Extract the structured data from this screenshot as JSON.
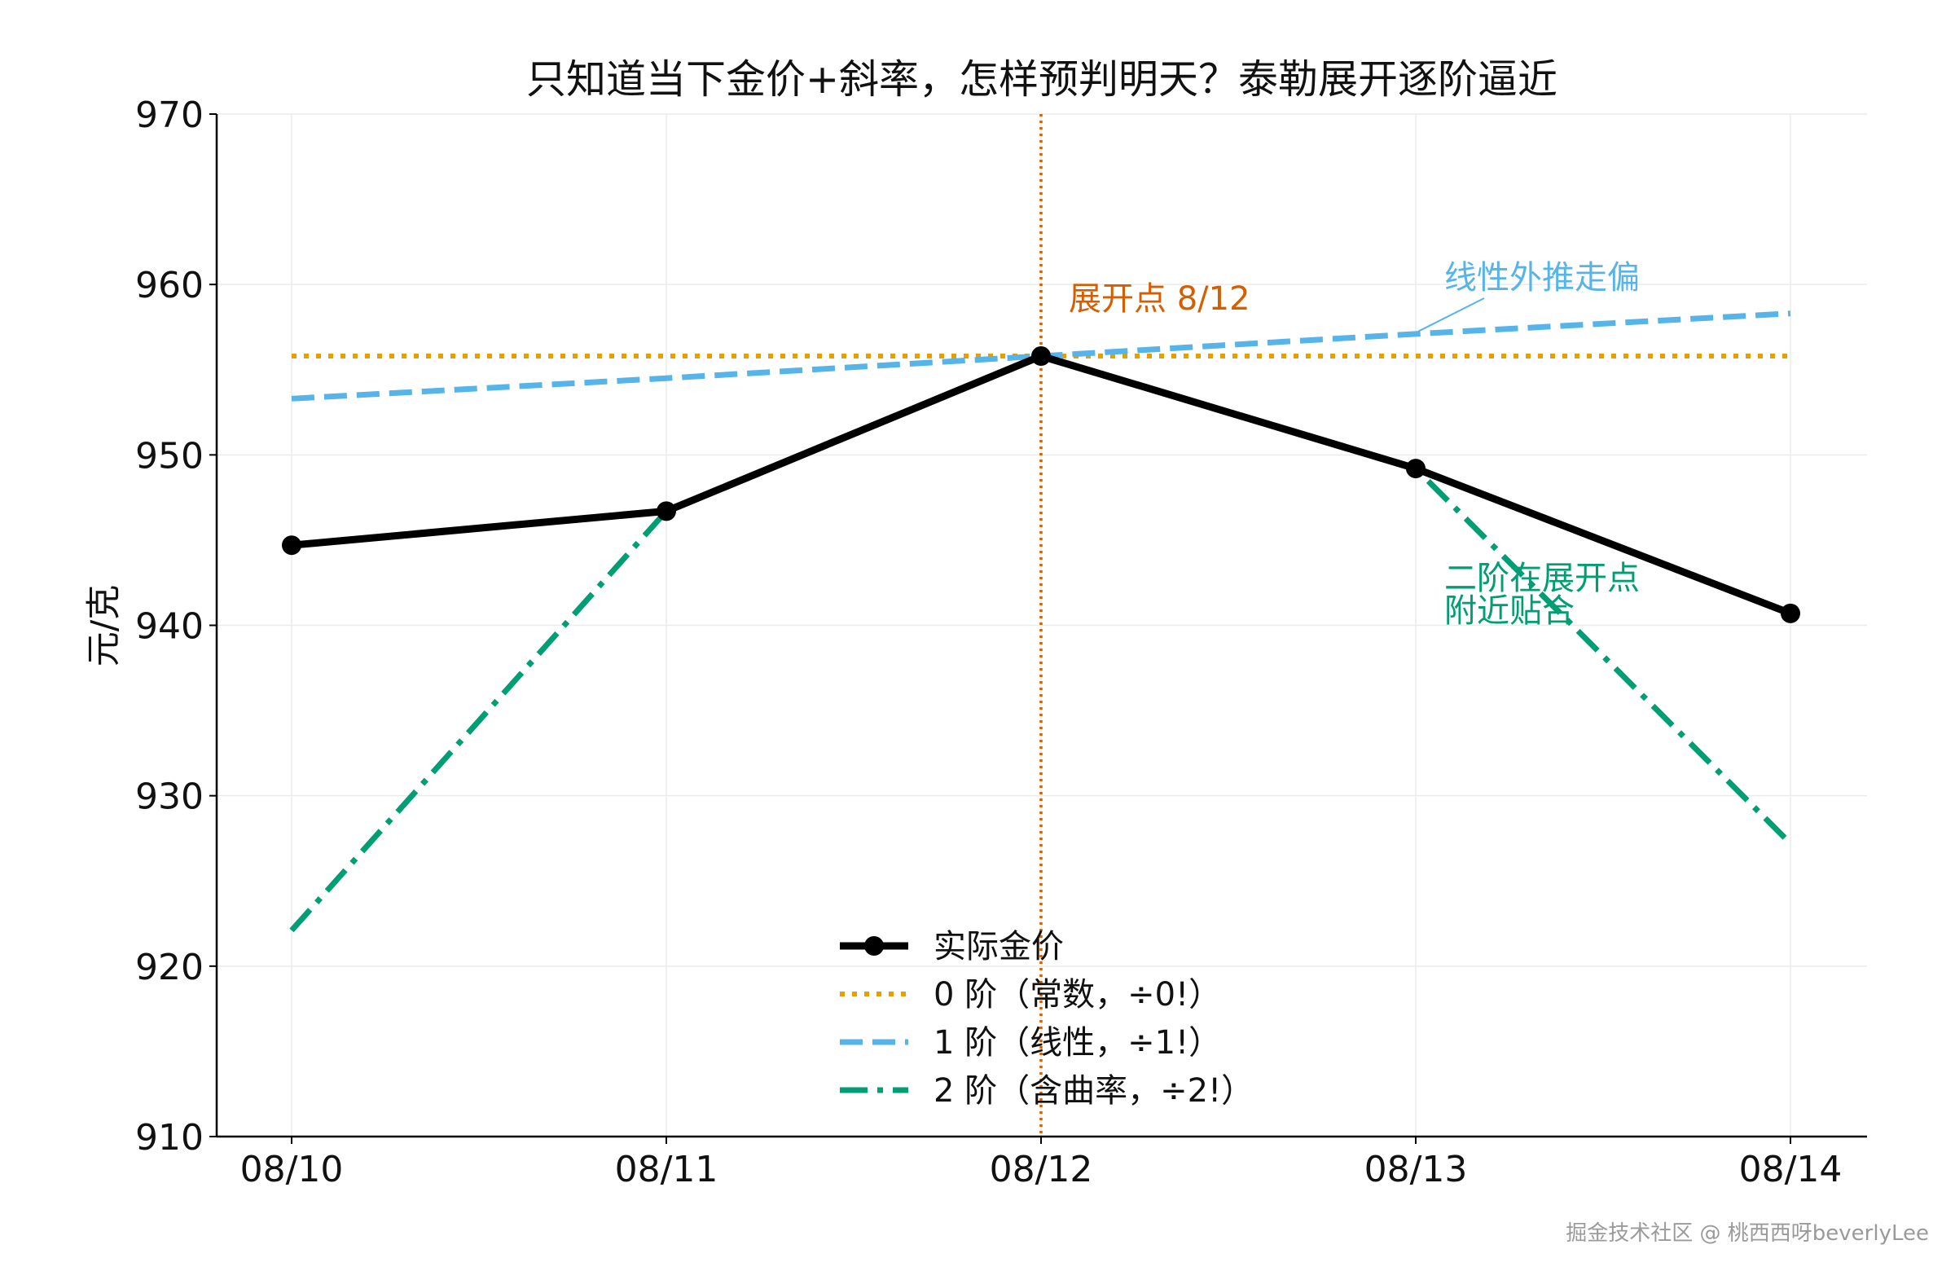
{
  "chart_data": {
    "type": "line",
    "title": "只知道当下金价+斜率，怎样预判明天？泰勒展开逐阶逼近",
    "xlabel": "",
    "ylabel": "元/克",
    "categories": [
      "08/10",
      "08/11",
      "08/12",
      "08/13",
      "08/14"
    ],
    "ylim": [
      910,
      970
    ],
    "yticks": [
      910,
      920,
      930,
      940,
      950,
      960,
      970
    ],
    "grid": true,
    "legend_position": "lower center",
    "series": [
      {
        "name": "实际金价",
        "values": [
          944.7,
          946.7,
          955.8,
          949.2,
          940.7
        ],
        "color": "#000000",
        "style": "solid",
        "marker": "circle"
      },
      {
        "name": "0 阶（常数，÷0!）",
        "values": [
          955.8,
          955.8,
          955.8,
          955.8,
          955.8
        ],
        "color": "#E69F00",
        "style": "dotted"
      },
      {
        "name": "1 阶（线性，÷1!）",
        "values": [
          953.3,
          954.5,
          955.8,
          957.1,
          958.3
        ],
        "color": "#56B4E9",
        "style": "dashed"
      },
      {
        "name": "2 阶（含曲率，÷2!）",
        "values": [
          922.1,
          946.7,
          955.8,
          949.2,
          927.2
        ],
        "color": "#009E73",
        "style": "dashdot"
      }
    ],
    "reference_line": {
      "x": "08/12",
      "color": "#D55E00",
      "style": "dotted"
    },
    "annotations": [
      {
        "text": "展开点 8/12",
        "color": "#D55E00"
      },
      {
        "text": "线性外推走偏",
        "color": "#56B4E9"
      },
      {
        "lines": [
          "二阶在展开点",
          "附近贴合"
        ],
        "color": "#009E73"
      }
    ]
  },
  "watermark": "掘金技术社区 @ 桃西西呀beverlyLee"
}
